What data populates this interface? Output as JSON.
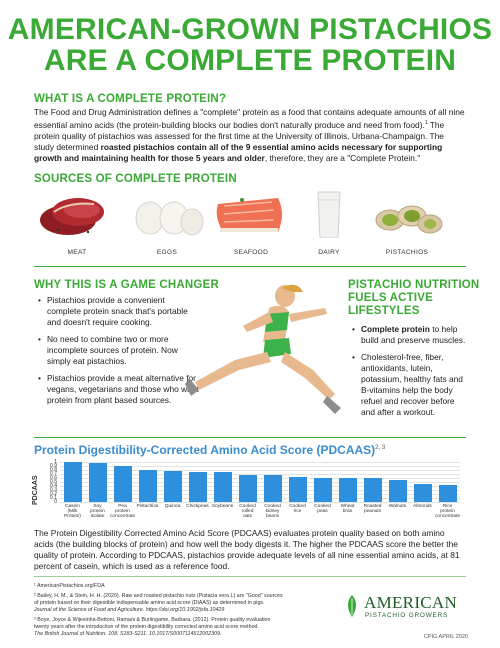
{
  "title": {
    "line1": "AMERICAN-GROWN PISTACHIOS",
    "line2": "ARE A COMPLETE PROTEIN"
  },
  "what": {
    "heading": "WHAT IS A COMPLETE PROTEIN?",
    "text_a": "The Food and Drug Administration defines a \"complete\" protein as a food that contains adequate amounts of all nine essential amino acids (the protein-building blocks our bodies don't naturally produce and need from food).",
    "sup_a": "1",
    "text_b": " The protein quality of pistachios was assessed for the first time at the University of Illinois, Urbana-Champaign. The study determined ",
    "text_bold": "roasted pistachios contain all of the 9 essential amino acids necessary for supporting growth and maintaining health for those 5 years and older",
    "text_c": ", therefore, they are a \"Complete Protein.\""
  },
  "sources": {
    "heading": "SOURCES OF COMPLETE PROTEIN",
    "items": [
      {
        "label": "MEAT",
        "icon": "meat-icon"
      },
      {
        "label": "EGGS",
        "icon": "eggs-icon"
      },
      {
        "label": "SEAFOOD",
        "icon": "salmon-icon"
      },
      {
        "label": "DAIRY",
        "icon": "milk-glass-icon"
      },
      {
        "label": "PISTACHIOS",
        "icon": "pistachio-icon"
      }
    ]
  },
  "game_changer": {
    "heading": "WHY THIS IS A GAME CHANGER",
    "bullets": [
      "Pistachios provide a convenient complete protein snack that's portable and doesn't require cooking.",
      "No need to combine two or more incomplete sources of protein. Now simply eat pistachios.",
      "Pistachios provide a meat alternative for vegans, vegetarians and those who want protein from plant based sources."
    ]
  },
  "nutrition": {
    "heading_line1": "PISTACHIO NUTRITION",
    "heading_line2": "FUELS ACTIVE",
    "heading_line3": "LIFESTYLES",
    "b1_bold": "Complete protein",
    "b1_rest": " to help build and preserve muscles.",
    "b2": "Cholesterol-free, fiber, antioxidants, lutein, potassium, healthy fats and B-vitamins help the body refuel and recover before and after a workout."
  },
  "chart_data": {
    "type": "bar",
    "title": "Protein Digestibility-Corrected Amino Acid Score (PDCAAS)",
    "title_sup": "2, 3",
    "ylabel": "PDCAAS",
    "ylim": [
      0,
      1.0
    ],
    "yticks": [
      "1",
      "0.9",
      "0.8",
      "0.7",
      "0.6",
      "0.5",
      "0.4",
      "0.3",
      "0.2",
      "0.1",
      "0"
    ],
    "categories": [
      [
        "Casein",
        "(Milk",
        "Protein)"
      ],
      [
        "Soy",
        "protein",
        "isolate"
      ],
      [
        "Pea",
        "protein",
        "concentrate"
      ],
      [
        "Pistachios"
      ],
      [
        "Quinoa"
      ],
      [
        "Chickpeas"
      ],
      [
        "Soybeans"
      ],
      [
        "Cooked",
        "rolled",
        "oats"
      ],
      [
        "Cooked",
        "kidney",
        "beans"
      ],
      [
        "Cooked",
        "rice"
      ],
      [
        "Cooked",
        "peas"
      ],
      [
        "Wheat",
        "bran"
      ],
      [
        "Roasted",
        "peanuts"
      ],
      [
        "Walnuts"
      ],
      [
        "Almonds"
      ],
      [
        "Rice",
        "protein",
        "concentrate"
      ]
    ],
    "values": [
      1.0,
      0.98,
      0.89,
      0.81,
      0.78,
      0.76,
      0.76,
      0.67,
      0.67,
      0.62,
      0.6,
      0.6,
      0.6,
      0.54,
      0.44,
      0.42
    ],
    "grid": true,
    "legend": "none"
  },
  "pdcaas_text": "The Protein Digestibility Corrected Amino Acid Score (PDCAAS) evaluates protein quality based on both amino acids (the building blocks of protein) and how well the body digests it. The higher the PDCAAS score the better the quality of protein. According to PDCAAS, pistachios provide adequate levels of all nine essential amino acids, at 81 percent of casein, which is used as a reference food.",
  "references": {
    "r1": "¹ AmericanPistachios.org/FDA",
    "r2a": "² Bailey, H. M., & Stein, H. H. (2020). Raw and roasted pistachio nuts (Pistacia vera L) are \"Good\" sources",
    "r2b": "of protein based on their digestible indispensable amino acid score (DIAAS) as determined in pigs.",
    "r2c": "Journal of the Science of Food and Agriculture. https://doi.org/10.1002/jsfa.10429",
    "r3a": "³ Boye, Joyce & Wijesinha-Bettoni, Ramani & Burlingame, Barbara. (2012). Protein quality evaluation",
    "r3b": "twenty years after the introduction of the protein digestibility corrected amino acid score method.",
    "r3c": "The British Journal of Nutrition. 108. S183-S211. 10.1017/S0007114512002309."
  },
  "logo": {
    "line1": "AMERICAN",
    "line2": "PISTACHIO GROWERS"
  },
  "footer": "CPIG APRIL 2020",
  "colors": {
    "green": "#3aa935",
    "blue": "#2e8fdc",
    "chart_title": "#3a8ccf"
  }
}
